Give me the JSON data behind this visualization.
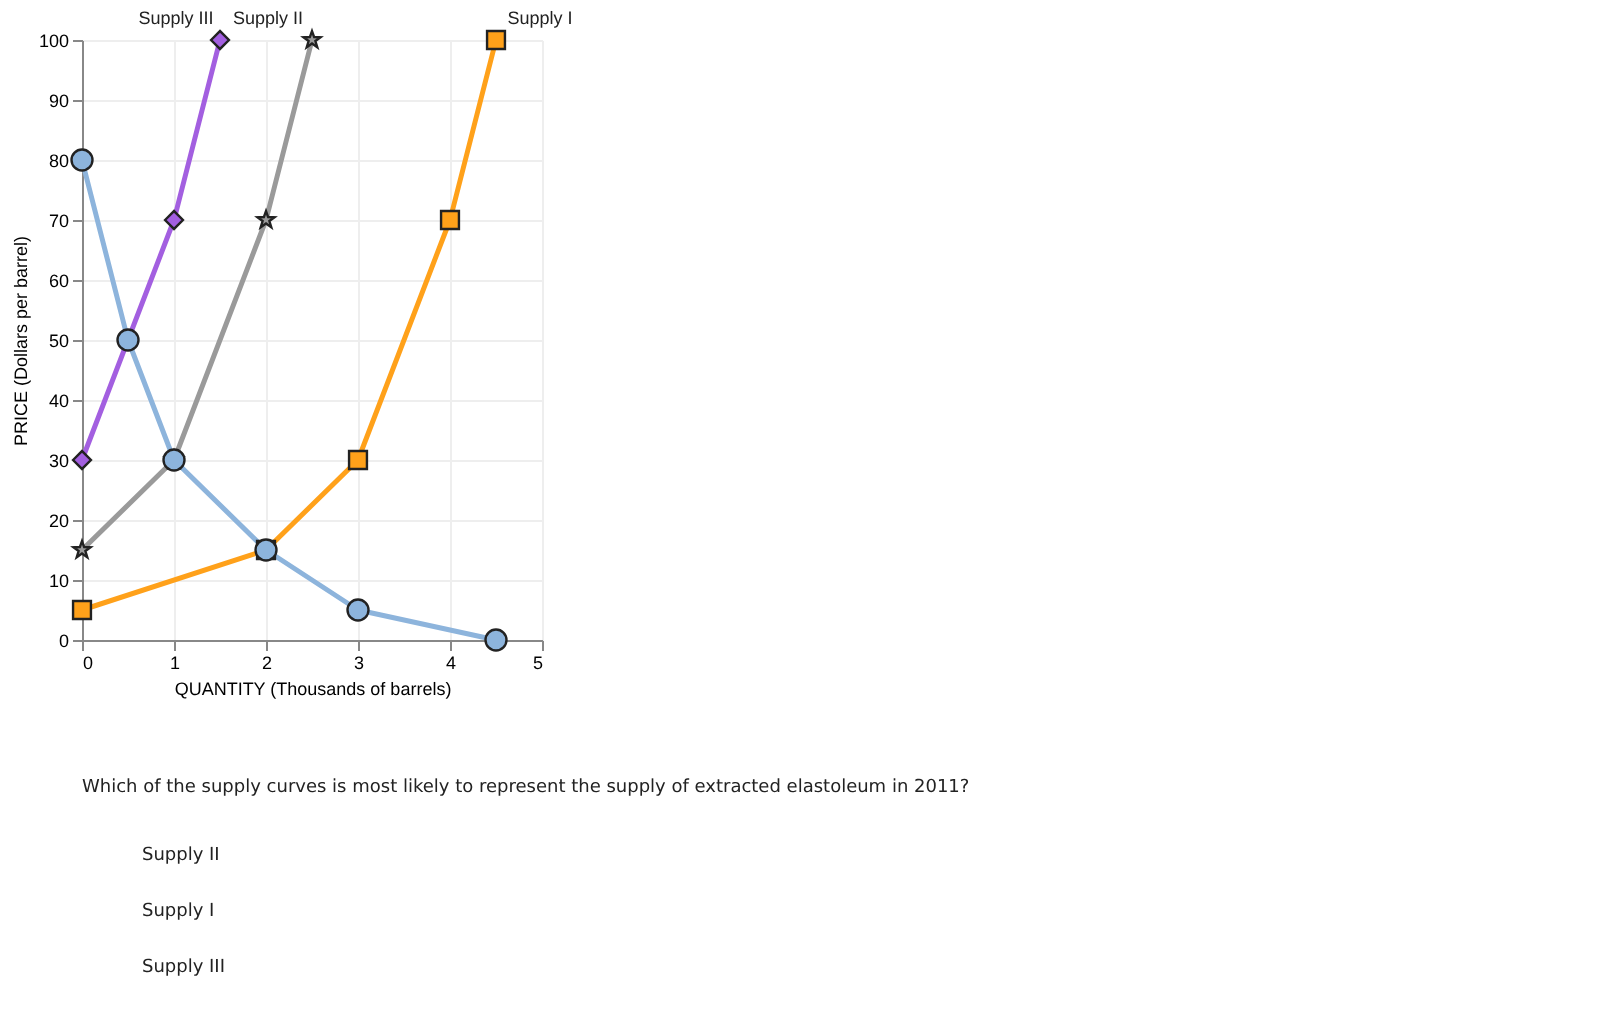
{
  "chart_data": {
    "type": "line",
    "xlabel": "QUANTITY (Thousands of barrels)",
    "ylabel": "PRICE (Dollars per barrel)",
    "xlim": [
      0,
      5
    ],
    "xticks": [
      0,
      1,
      2,
      3,
      4,
      5
    ],
    "ylim": [
      0,
      100
    ],
    "yticks": [
      0,
      10,
      20,
      30,
      40,
      50,
      60,
      70,
      80,
      90,
      100
    ],
    "grid": true,
    "legend": false,
    "line_style": "solid",
    "series": [
      {
        "color": "#8db4dc",
        "marker": "circle",
        "x": [
          0,
          0.5,
          1,
          2,
          3,
          4.5
        ],
        "values": [
          80,
          50,
          30,
          15,
          5,
          0
        ]
      },
      {
        "name": "Supply III",
        "color": "#a35fe0",
        "marker": "diamond",
        "x": [
          0,
          1,
          1.5
        ],
        "values": [
          30,
          70,
          100
        ]
      },
      {
        "name": "Supply II",
        "color": "#9a9a9a",
        "marker": "star",
        "x": [
          0,
          1,
          2,
          2.5
        ],
        "values": [
          15,
          30,
          70,
          100
        ]
      },
      {
        "name": "Supply I",
        "color": "#ffa11a",
        "marker": "square",
        "x": [
          0,
          2,
          3,
          4,
          4.5
        ],
        "values": [
          5,
          15,
          30,
          70,
          100
        ]
      }
    ],
    "annotations": [
      "Which of the supply curves is most likely to represent the supply of extracted elastoleum in 2011?",
      "Supply II",
      "Supply I",
      "Supply III"
    ]
  }
}
